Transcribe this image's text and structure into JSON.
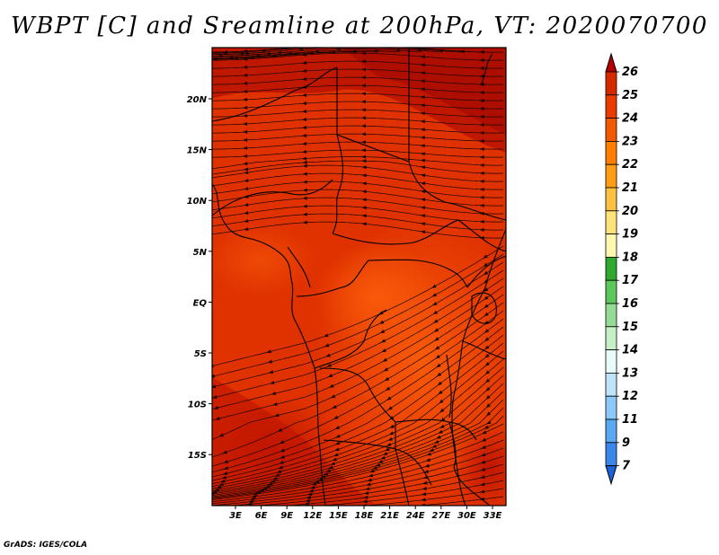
{
  "title": "WBPT [C] and Sreamline at 200hPa, VT: 2020070700",
  "credit": "GrADS: IGES/COLA",
  "map": {
    "lat_labels": [
      "20N",
      "15N",
      "10N",
      "5N",
      "EQ",
      "5S",
      "10S",
      "15S"
    ],
    "lon_labels": [
      "3E",
      "6E",
      "9E",
      "12E",
      "15E",
      "18E",
      "21E",
      "24E",
      "27E",
      "30E",
      "33E"
    ],
    "field_colors": {
      "deep": "#b00f00",
      "dark": "#d52a00",
      "mid": "#e83300",
      "light": "#f24f00"
    }
  },
  "colorbar": {
    "labels": [
      "26",
      "25",
      "24",
      "23",
      "22",
      "21",
      "20",
      "19",
      "18",
      "17",
      "16",
      "15",
      "14",
      "13",
      "12",
      "11",
      "9",
      "7"
    ],
    "colors": [
      "#b30000",
      "#d52a00",
      "#ea3c00",
      "#f35a00",
      "#ff7d00",
      "#fe9d15",
      "#fec040",
      "#ffe37a",
      "#fff6b0",
      "#2fa82f",
      "#5cc85c",
      "#95db95",
      "#c6efc6",
      "#e8fbfb",
      "#bfe3fb",
      "#8cc8fa",
      "#5aa7f2",
      "#3a86ea",
      "#1b63d6"
    ]
  }
}
